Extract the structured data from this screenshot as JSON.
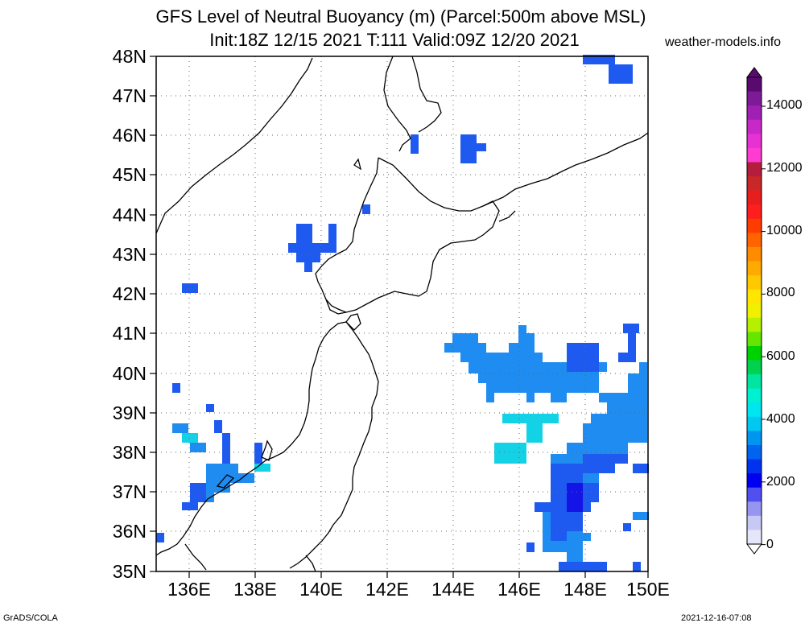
{
  "header": {
    "title_line1": "GFS Level of Neutral Buoyancy (m) (Parcel:500m above MSL)",
    "title_line2": "Init:18Z 12/15 2021 T:111 Valid:09Z 12/20 2021",
    "site": "weather-models.info"
  },
  "footer": {
    "left": "GrADS/COLA",
    "right": "2021-12-16-07:08"
  },
  "map": {
    "lat_labels": [
      "48N",
      "47N",
      "46N",
      "45N",
      "44N",
      "43N",
      "42N",
      "41N",
      "40N",
      "39N",
      "38N",
      "37N",
      "36N",
      "35N"
    ],
    "lon_labels": [
      "136E",
      "138E",
      "140E",
      "142E",
      "144E",
      "146E",
      "148E",
      "150E"
    ],
    "lat_range": [
      35,
      48
    ],
    "lon_range": [
      135,
      150
    ],
    "grid": "dotted"
  },
  "colorbar": {
    "labels": [
      "14000",
      "12000",
      "10000",
      "8000",
      "6000",
      "4000",
      "2000",
      "0"
    ],
    "colors": [
      "#5a0a6e",
      "#7d1a96",
      "#a020b4",
      "#c828c8",
      "#e632d2",
      "#ff3cd2",
      "#b41e3c",
      "#c82828",
      "#e61e1e",
      "#ff1e1e",
      "#ff3c00",
      "#ff6400",
      "#ff8c00",
      "#ffaa00",
      "#ffc800",
      "#ffe600",
      "#f0f000",
      "#b4f000",
      "#64e600",
      "#00d200",
      "#00d250",
      "#00e6a0",
      "#00f0d2",
      "#00e6f0",
      "#00c8f0",
      "#0096f0",
      "#0064f0",
      "#0032f0",
      "#0000f0",
      "#5050f0",
      "#9696f0",
      "#c8c8f5",
      "#e6e6fa"
    ]
  },
  "overlay_colors": {
    "blue_dark": "#1414e6",
    "blue": "#1e5af0",
    "blue_mid": "#1e8cf0",
    "cyan": "#14d2e6"
  }
}
